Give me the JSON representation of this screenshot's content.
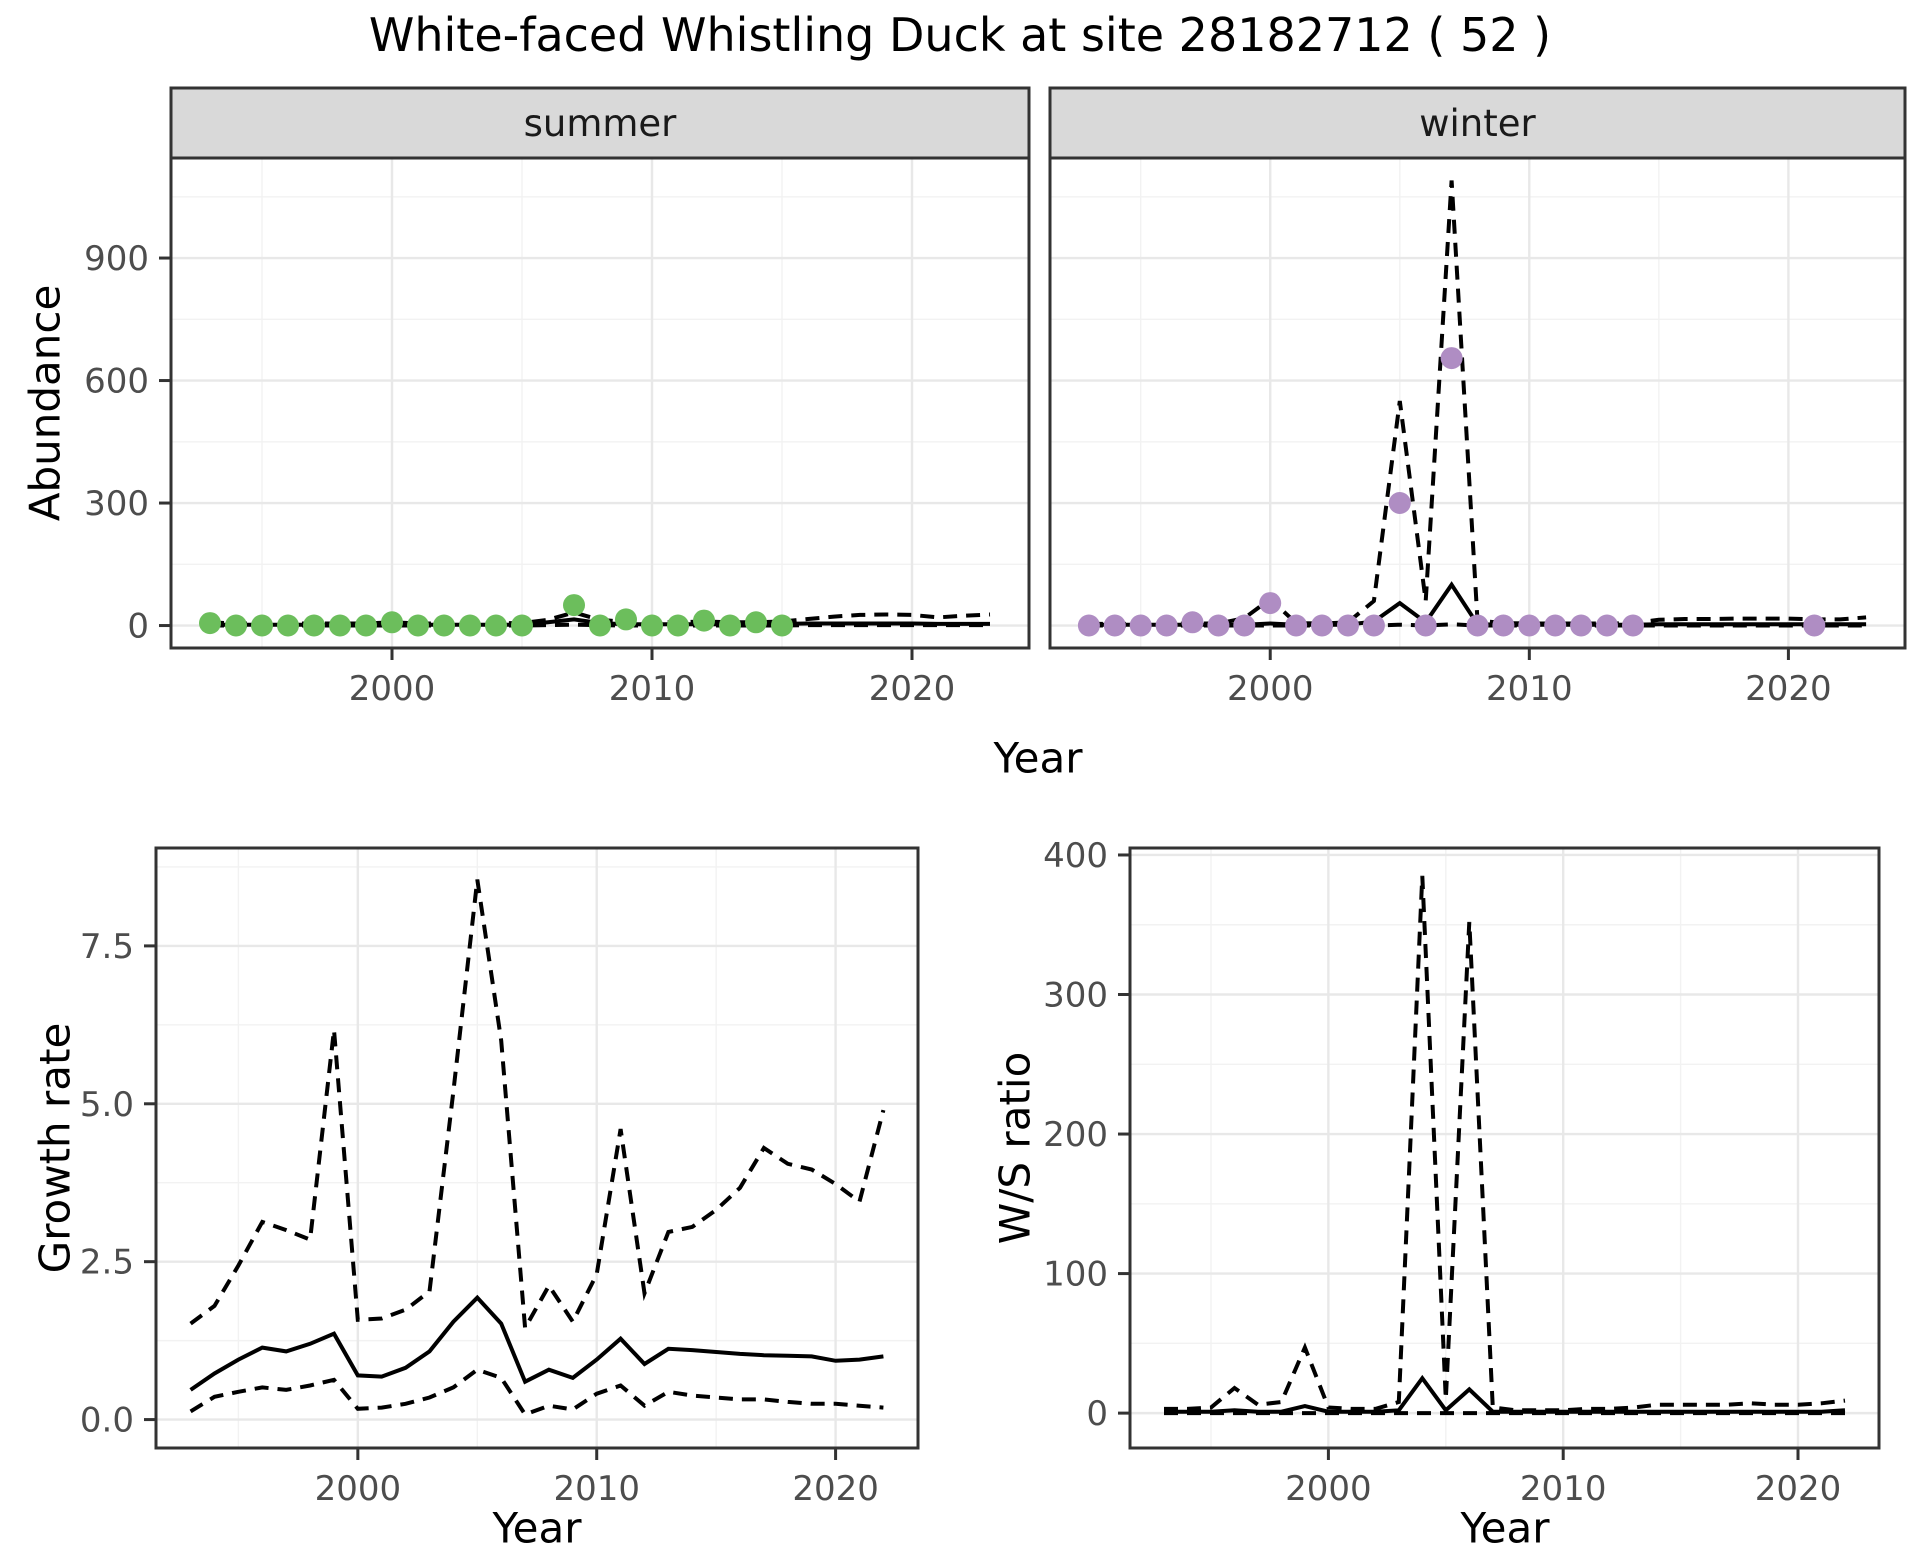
{
  "page": {
    "title": "White-faced Whistling Duck at site 28182712 ( 52 )",
    "labels": {
      "abundance": "Abundance",
      "year": "Year",
      "growth_rate": "Growth rate",
      "ws_ratio": "W/S ratio"
    },
    "colors": {
      "summer_points": "#6CBE5C",
      "winter_points": "#AF8DC3",
      "line": "#000000",
      "strip_bg": "#D9D9D9",
      "strip_border": "#333333",
      "panel_border": "#333333",
      "grid_major": "#E8E8E8",
      "grid_minor": "#F2F2F2",
      "axis_text": "#4D4D4D",
      "tick_mark": "#333333"
    }
  },
  "chart_data": [
    {
      "id": "abundance-summer",
      "type": "line",
      "facet_label": "summer",
      "xlabel": "Year",
      "ylabel": "Abundance",
      "x_domain": [
        1991.5,
        2024.5
      ],
      "y_domain": [
        -55,
        1145
      ],
      "x_ticks": [
        2000,
        2010,
        2020
      ],
      "x_tick_labels": [
        "2000",
        "2010",
        "2020"
      ],
      "x_minor": [
        1995,
        2005,
        2015
      ],
      "y_ticks": [
        0,
        300,
        600,
        900
      ],
      "y_tick_labels": [
        "0",
        "300",
        "600",
        "900"
      ],
      "y_minor": [
        150,
        450,
        750,
        1050
      ],
      "show_y_axis": true,
      "series": [
        {
          "name": "lower_ci",
          "style": "dashed",
          "x": [
            1993,
            1994,
            1995,
            1996,
            1997,
            1998,
            1999,
            2000,
            2001,
            2002,
            2003,
            2004,
            2005,
            2006,
            2007,
            2008,
            2009,
            2010,
            2011,
            2012,
            2013,
            2014,
            2015,
            2016,
            2017,
            2018,
            2019,
            2020,
            2021,
            2022,
            2023
          ],
          "y": [
            0,
            0,
            0,
            0,
            0,
            0,
            0,
            0,
            0,
            0,
            0,
            0,
            0,
            1,
            2,
            1,
            0,
            0,
            0,
            0,
            0,
            0,
            0,
            1,
            1,
            1,
            1,
            1,
            1,
            1,
            1
          ]
        },
        {
          "name": "upper_ci",
          "style": "dashed",
          "x": [
            1993,
            1994,
            1995,
            1996,
            1997,
            1998,
            1999,
            2000,
            2001,
            2002,
            2003,
            2004,
            2005,
            2006,
            2007,
            2008,
            2009,
            2010,
            2011,
            2012,
            2013,
            2014,
            2015,
            2016,
            2017,
            2018,
            2019,
            2020,
            2021,
            2022,
            2023
          ],
          "y": [
            8,
            5,
            5,
            5,
            5,
            5,
            5,
            8,
            5,
            5,
            5,
            6,
            6,
            14,
            32,
            14,
            9,
            8,
            8,
            10,
            8,
            8,
            10,
            16,
            22,
            26,
            27,
            26,
            20,
            24,
            27
          ]
        },
        {
          "name": "model_fit",
          "style": "solid",
          "x": [
            1993,
            1994,
            1995,
            1996,
            1997,
            1998,
            1999,
            2000,
            2001,
            2002,
            2003,
            2004,
            2005,
            2006,
            2007,
            2008,
            2009,
            2010,
            2011,
            2012,
            2013,
            2014,
            2015,
            2016,
            2017,
            2018,
            2019,
            2020,
            2021,
            2022,
            2023
          ],
          "y": [
            2,
            2,
            2,
            2,
            2,
            2,
            2,
            3,
            2,
            2,
            2,
            2,
            2,
            8,
            15,
            6,
            3,
            3,
            3,
            3,
            3,
            3,
            4,
            5,
            5,
            5,
            5,
            5,
            4,
            4,
            4
          ]
        }
      ],
      "points": {
        "name": "summer_observations",
        "color_key": "summer_points",
        "x": [
          1993,
          1994,
          1995,
          1996,
          1997,
          1998,
          1999,
          2000,
          2001,
          2002,
          2003,
          2004,
          2005,
          2007,
          2008,
          2009,
          2010,
          2011,
          2012,
          2013,
          2014,
          2015
        ],
        "y": [
          6,
          0,
          0,
          0,
          0,
          0,
          0,
          8,
          0,
          0,
          0,
          0,
          0,
          50,
          0,
          15,
          0,
          0,
          12,
          0,
          8,
          0
        ]
      }
    },
    {
      "id": "abundance-winter",
      "type": "line",
      "facet_label": "winter",
      "xlabel": "Year",
      "ylabel": "Abundance",
      "x_domain": [
        1991.5,
        2024.5
      ],
      "y_domain": [
        -55,
        1145
      ],
      "x_ticks": [
        2000,
        2010,
        2020
      ],
      "x_tick_labels": [
        "2000",
        "2010",
        "2020"
      ],
      "x_minor": [
        1995,
        2005,
        2015
      ],
      "y_ticks": [
        0,
        300,
        600,
        900
      ],
      "y_tick_labels": [
        "0",
        "300",
        "600",
        "900"
      ],
      "y_minor": [
        150,
        450,
        750,
        1050
      ],
      "show_y_axis": false,
      "series": [
        {
          "name": "lower_ci",
          "style": "dashed",
          "x": [
            1993,
            1994,
            1995,
            1996,
            1997,
            1998,
            1999,
            2000,
            2001,
            2002,
            2003,
            2004,
            2005,
            2006,
            2007,
            2008,
            2009,
            2010,
            2011,
            2012,
            2013,
            2014,
            2015,
            2016,
            2017,
            2018,
            2019,
            2020,
            2021,
            2022,
            2023
          ],
          "y": [
            0,
            0,
            0,
            0,
            0,
            0,
            0,
            0,
            0,
            0,
            0,
            0,
            2,
            0,
            3,
            0,
            0,
            0,
            0,
            0,
            0,
            0,
            0,
            0,
            0,
            0,
            0,
            0,
            0,
            0,
            0
          ]
        },
        {
          "name": "upper_ci",
          "style": "dashed",
          "x": [
            1993,
            1994,
            1995,
            1996,
            1997,
            1998,
            1999,
            2000,
            2001,
            2002,
            2003,
            2004,
            2005,
            2006,
            2007,
            2008,
            2009,
            2010,
            2011,
            2012,
            2013,
            2014,
            2015,
            2016,
            2017,
            2018,
            2019,
            2020,
            2021,
            2022,
            2023
          ],
          "y": [
            4,
            4,
            4,
            4,
            5,
            5,
            18,
            65,
            6,
            5,
            8,
            60,
            550,
            60,
            1090,
            12,
            6,
            5,
            5,
            5,
            5,
            6,
            14,
            16,
            16,
            17,
            17,
            17,
            15,
            15,
            20
          ]
        },
        {
          "name": "model_fit",
          "style": "solid",
          "x": [
            1993,
            1994,
            1995,
            1996,
            1997,
            1998,
            1999,
            2000,
            2001,
            2002,
            2003,
            2004,
            2005,
            2006,
            2007,
            2008,
            2009,
            2010,
            2011,
            2012,
            2013,
            2014,
            2015,
            2016,
            2017,
            2018,
            2019,
            2020,
            2021,
            2022,
            2023
          ],
          "y": [
            2,
            2,
            2,
            2,
            2,
            2,
            2,
            5,
            2,
            2,
            2,
            10,
            55,
            8,
            100,
            3,
            2,
            2,
            2,
            2,
            2,
            2,
            3,
            3,
            3,
            3,
            3,
            3,
            3,
            3,
            3
          ]
        }
      ],
      "points": {
        "name": "winter_observations",
        "color_key": "winter_points",
        "x": [
          1993,
          1994,
          1995,
          1996,
          1997,
          1998,
          1999,
          2000,
          2001,
          2002,
          2003,
          2004,
          2005,
          2006,
          2007,
          2008,
          2009,
          2010,
          2011,
          2012,
          2013,
          2014,
          2021
        ],
        "y": [
          0,
          0,
          0,
          0,
          8,
          0,
          0,
          55,
          0,
          0,
          0,
          0,
          300,
          0,
          655,
          0,
          0,
          0,
          0,
          0,
          0,
          0,
          0
        ]
      }
    },
    {
      "id": "growth-rate",
      "type": "line",
      "facet_label": null,
      "xlabel": "Year",
      "ylabel": "Growth rate",
      "x_domain": [
        1991.55,
        2023.45
      ],
      "y_domain": [
        -0.45,
        9.05
      ],
      "x_ticks": [
        2000,
        2010,
        2020
      ],
      "x_tick_labels": [
        "2000",
        "2010",
        "2020"
      ],
      "x_minor": [
        1995,
        2005,
        2015
      ],
      "y_ticks": [
        0,
        2.5,
        5,
        7.5
      ],
      "y_tick_labels": [
        "0.0",
        "2.5",
        "5.0",
        "7.5"
      ],
      "y_minor": [
        1.25,
        3.75,
        6.25,
        8.75
      ],
      "show_y_axis": true,
      "series": [
        {
          "name": "lower_ci",
          "style": "dashed",
          "x": [
            1993,
            1994,
            1995,
            1996,
            1997,
            1998,
            1999,
            2000,
            2001,
            2002,
            2003,
            2004,
            2005,
            2006,
            2007,
            2008,
            2009,
            2010,
            2011,
            2012,
            2013,
            2014,
            2015,
            2016,
            2017,
            2018,
            2019,
            2020,
            2021,
            2022
          ],
          "y": [
            0.13,
            0.36,
            0.44,
            0.51,
            0.47,
            0.54,
            0.63,
            0.17,
            0.19,
            0.25,
            0.35,
            0.51,
            0.79,
            0.66,
            0.08,
            0.22,
            0.16,
            0.41,
            0.54,
            0.22,
            0.44,
            0.38,
            0.35,
            0.32,
            0.32,
            0.28,
            0.25,
            0.25,
            0.22,
            0.19
          ]
        },
        {
          "name": "upper_ci",
          "style": "dashed",
          "x": [
            1993,
            1994,
            1995,
            1996,
            1997,
            1998,
            1999,
            2000,
            2001,
            2002,
            2003,
            2004,
            2005,
            2006,
            2007,
            2008,
            2009,
            2010,
            2011,
            2012,
            2013,
            2014,
            2015,
            2016,
            2017,
            2018,
            2019,
            2020,
            2021,
            2022
          ],
          "y": [
            1.52,
            1.8,
            2.44,
            3.13,
            3.0,
            2.85,
            6.17,
            1.58,
            1.6,
            1.74,
            2.03,
            5.2,
            8.55,
            6.0,
            1.45,
            2.12,
            1.55,
            2.3,
            4.6,
            2.0,
            2.97,
            3.05,
            3.32,
            3.67,
            4.3,
            4.05,
            3.96,
            3.73,
            3.45,
            4.9
          ]
        },
        {
          "name": "model_fit",
          "style": "solid",
          "x": [
            1993,
            1994,
            1995,
            1996,
            1997,
            1998,
            1999,
            2000,
            2001,
            2002,
            2003,
            2004,
            2005,
            2006,
            2007,
            2008,
            2009,
            2010,
            2011,
            2012,
            2013,
            2014,
            2015,
            2016,
            2017,
            2018,
            2019,
            2020,
            2021,
            2022
          ],
          "y": [
            0.47,
            0.73,
            0.95,
            1.14,
            1.08,
            1.2,
            1.36,
            0.7,
            0.68,
            0.82,
            1.08,
            1.55,
            1.93,
            1.52,
            0.6,
            0.79,
            0.66,
            0.95,
            1.28,
            0.88,
            1.12,
            1.1,
            1.07,
            1.04,
            1.02,
            1.01,
            1.0,
            0.93,
            0.95,
            1.0
          ]
        }
      ],
      "points": null
    },
    {
      "id": "ws-ratio",
      "type": "line",
      "facet_label": null,
      "xlabel": "Year",
      "ylabel": "W/S ratio",
      "x_domain": [
        1991.55,
        2023.45
      ],
      "y_domain": [
        -25,
        405
      ],
      "x_ticks": [
        2000,
        2010,
        2020
      ],
      "x_tick_labels": [
        "2000",
        "2010",
        "2020"
      ],
      "x_minor": [
        1995,
        2005,
        2015
      ],
      "y_ticks": [
        0,
        100,
        200,
        300,
        400
      ],
      "y_tick_labels": [
        "0",
        "100",
        "200",
        "300",
        "400"
      ],
      "y_minor": [
        50,
        150,
        250,
        350
      ],
      "show_y_axis": true,
      "series": [
        {
          "name": "lower_ci",
          "style": "dashed",
          "x": [
            1993,
            1994,
            1995,
            1996,
            1997,
            1998,
            1999,
            2000,
            2001,
            2002,
            2003,
            2004,
            2005,
            2006,
            2007,
            2008,
            2009,
            2010,
            2011,
            2012,
            2013,
            2014,
            2015,
            2016,
            2017,
            2018,
            2019,
            2020,
            2021,
            2022
          ],
          "y": [
            0,
            0,
            0,
            0,
            0,
            0,
            0,
            0,
            0,
            0,
            0,
            0,
            0,
            0,
            0,
            0,
            0,
            0,
            0,
            0,
            0,
            0,
            0,
            0,
            0,
            0,
            0,
            0,
            0,
            0
          ]
        },
        {
          "name": "upper_ci",
          "style": "dashed",
          "x": [
            1993,
            1994,
            1995,
            1996,
            1997,
            1998,
            1999,
            2000,
            2001,
            2002,
            2003,
            2004,
            2005,
            2006,
            2007,
            2008,
            2009,
            2010,
            2011,
            2012,
            2013,
            2014,
            2015,
            2016,
            2017,
            2018,
            2019,
            2020,
            2021,
            2022
          ],
          "y": [
            3,
            3,
            4,
            18,
            6,
            8,
            47,
            4,
            3,
            3,
            8,
            385,
            10,
            352,
            4,
            2,
            2,
            2,
            3,
            3,
            4,
            6,
            6,
            6,
            6,
            7,
            6,
            6,
            7,
            9
          ]
        },
        {
          "name": "model_fit",
          "style": "solid",
          "x": [
            1993,
            1994,
            1995,
            1996,
            1997,
            1998,
            1999,
            2000,
            2001,
            2002,
            2003,
            2004,
            2005,
            2006,
            2007,
            2008,
            2009,
            2010,
            2011,
            2012,
            2013,
            2014,
            2015,
            2016,
            2017,
            2018,
            2019,
            2020,
            2021,
            2022
          ],
          "y": [
            1,
            1,
            1,
            2,
            1,
            1,
            5,
            1,
            1,
            1,
            2,
            25,
            2,
            17,
            1,
            1,
            1,
            1,
            1,
            1,
            1,
            1,
            1,
            1,
            1,
            1,
            1,
            1,
            1,
            2
          ]
        }
      ],
      "points": null
    }
  ]
}
